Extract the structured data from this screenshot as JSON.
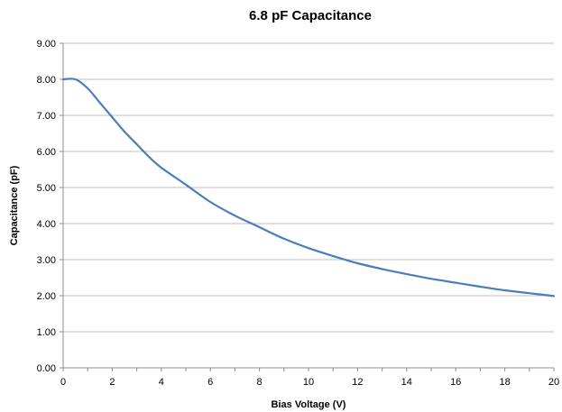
{
  "chart_data": {
    "type": "line",
    "title": "6.8 pF Capacitance",
    "xlabel": "Bias Voltage (V)",
    "ylabel": "Capacitance (pF)",
    "xlim": [
      0,
      20
    ],
    "ylim": [
      0,
      9
    ],
    "x_ticks": [
      0,
      2,
      4,
      6,
      8,
      10,
      12,
      14,
      16,
      18,
      20
    ],
    "x_tick_labels": [
      "0",
      "2",
      "4",
      "6",
      "8",
      "10",
      "12",
      "14",
      "16",
      "18",
      "20"
    ],
    "y_ticks": [
      0,
      1,
      2,
      3,
      4,
      5,
      6,
      7,
      8,
      9
    ],
    "y_tick_labels": [
      "0.00",
      "1.00",
      "2.00",
      "3.00",
      "4.00",
      "5.00",
      "6.00",
      "7.00",
      "8.00",
      "9.00"
    ],
    "grid": true,
    "legend": "none",
    "line_color": "#4a7ebb",
    "series": [
      {
        "x": [
          0,
          0.5,
          1,
          1.5,
          2,
          2.5,
          3,
          3.5,
          4,
          5,
          6,
          7,
          8,
          9,
          10,
          11,
          12,
          13,
          14,
          15,
          16,
          17,
          18,
          19,
          20
        ],
        "values": [
          8.0,
          8.0,
          7.75,
          7.35,
          6.95,
          6.55,
          6.2,
          5.85,
          5.55,
          5.08,
          4.6,
          4.22,
          3.9,
          3.58,
          3.32,
          3.1,
          2.9,
          2.74,
          2.6,
          2.47,
          2.36,
          2.25,
          2.15,
          2.07,
          1.99
        ]
      }
    ]
  }
}
